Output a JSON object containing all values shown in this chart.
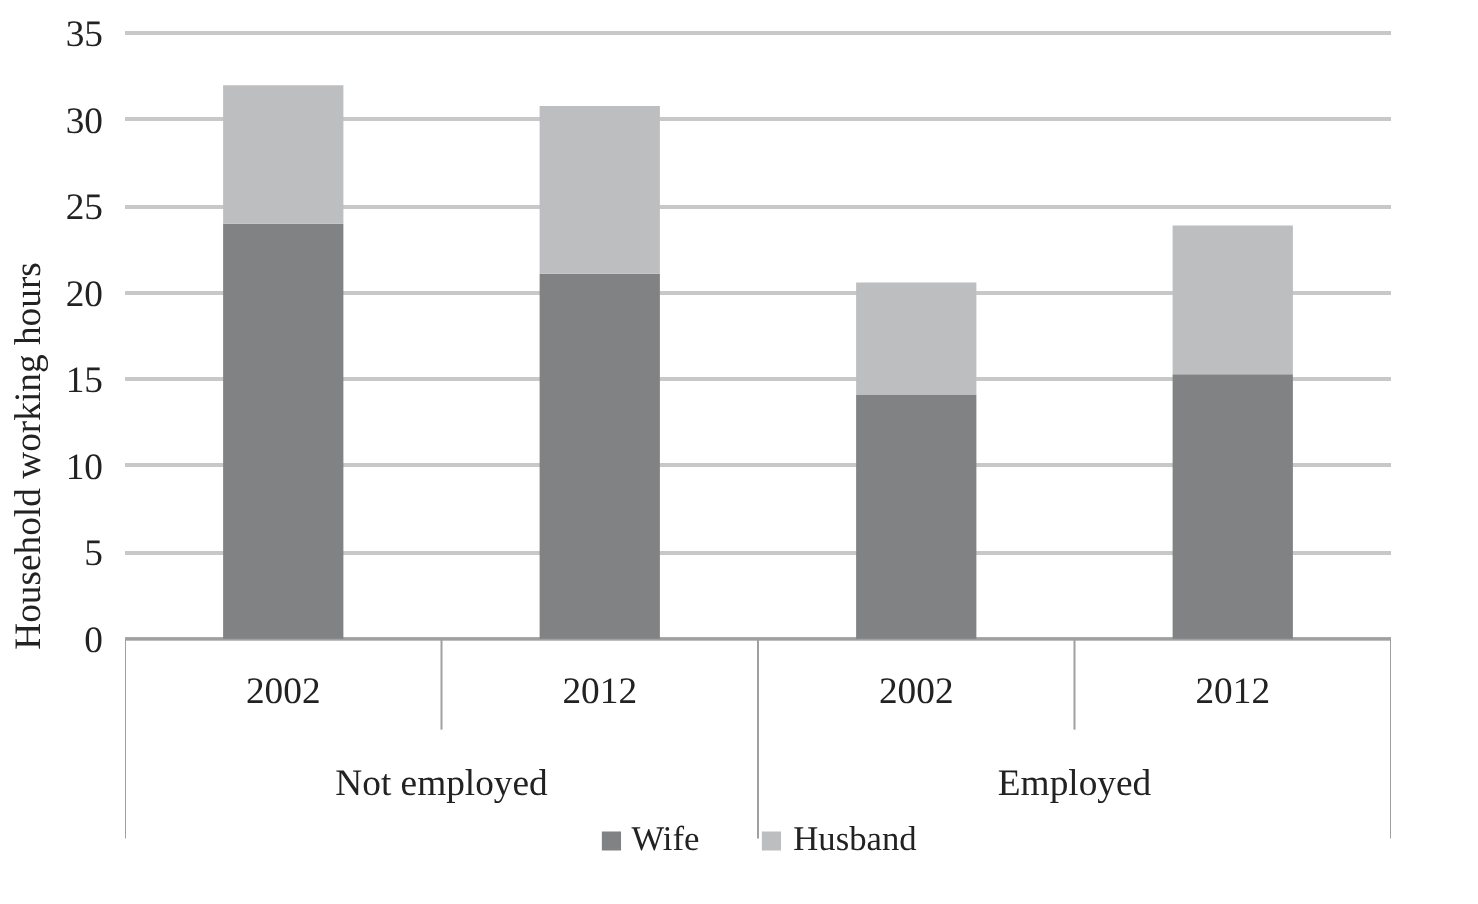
{
  "chart_data": {
    "type": "bar",
    "stacked": true,
    "ylabel": "Household working hours",
    "categories": [
      "2002",
      "2012",
      "2002",
      "2012"
    ],
    "series": [
      {
        "name": "Wife",
        "color": "#808284",
        "values": [
          24,
          21.1,
          14.1,
          15.3
        ]
      },
      {
        "name": "Husband",
        "color": "#bcbec0",
        "values": [
          8,
          9.7,
          6.5,
          8.6
        ]
      }
    ],
    "annotations": [
      "Not employed",
      "Employed"
    ],
    "ylim": [
      0,
      35
    ],
    "yticks": [
      0,
      5,
      10,
      15,
      20,
      25,
      30,
      35
    ],
    "grid": "y",
    "legend": "bottom"
  }
}
